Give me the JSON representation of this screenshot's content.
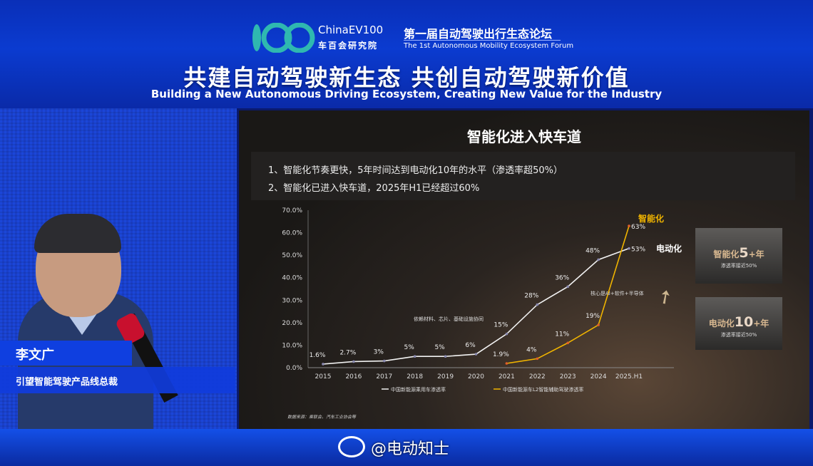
{
  "header": {
    "logo_en": "ChinaEV100",
    "logo_cn": "车百会研究院",
    "forum_cn": "第一届自动驾驶出行生态论坛",
    "forum_en": "The 1st Autonomous Mobility Ecosystem Forum",
    "slogan": "共建自动驾驶新生态 共创自动驾驶新价值",
    "slogan_en": "Building a New Autonomous Driving Ecosystem, Creating New Value for the Industry"
  },
  "speaker": {
    "name": "李文广",
    "title": "引望智能驾驶产品线总裁"
  },
  "slide": {
    "title": "智能化进入快车道",
    "bullets": [
      "1、智能化节奏更快，5年时间达到电动化10年的水平（渗透率超50%）",
      "2、智能化已进入快车道，2025年H1已经超过60%"
    ],
    "box1": {
      "prefix": "智能化",
      "num": "5",
      "suffix": "+年",
      "sub": "渗透率接近50%"
    },
    "box2": {
      "prefix": "电动化",
      "num": "10",
      "suffix": "+年",
      "sub": "渗透率接近50%"
    },
    "source": "数据来源：乘联会、汽车工业协会等"
  },
  "chart_data": {
    "type": "line",
    "categories": [
      "2015",
      "2016",
      "2017",
      "2018",
      "2019",
      "2020",
      "2021",
      "2022",
      "2023",
      "2024",
      "2025.H1"
    ],
    "ylim": [
      0,
      70
    ],
    "yticks": [
      "0.0%",
      "10.0%",
      "20.0%",
      "30.0%",
      "40.0%",
      "50.0%",
      "60.0%",
      "70.0%"
    ],
    "legend": "bottom",
    "series": [
      {
        "name": "中国新能源乘用车渗透率",
        "end_label": "电动化",
        "color": "#f2f2f2",
        "values": [
          1.6,
          2.7,
          3,
          5,
          5,
          6,
          15,
          28,
          36,
          48,
          53
        ],
        "labels": [
          "1.6%",
          "2.7%",
          "3%",
          "5%",
          "5%",
          "6%",
          "15%",
          "28%",
          "36%",
          "48%",
          "53%"
        ]
      },
      {
        "name": "中国新能源车L2智能辅助驾驶渗透率",
        "end_label": "智能化",
        "color": "#f0b400",
        "values": [
          null,
          null,
          null,
          null,
          null,
          null,
          1.9,
          4,
          11,
          19,
          63
        ],
        "labels": [
          "",
          "",
          "",
          "",
          "",
          "",
          "1.9%",
          "4%",
          "11%",
          "19%",
          "63%"
        ]
      }
    ],
    "annotations": [
      "依赖材料、芯片、基础设施协同",
      "核心是AI+软件+半导体"
    ]
  },
  "watermark": "@电动知士",
  "colors": {
    "banner": "#0b3bd0",
    "gold": "#f0b400",
    "slide_bg": "#1a1816"
  }
}
